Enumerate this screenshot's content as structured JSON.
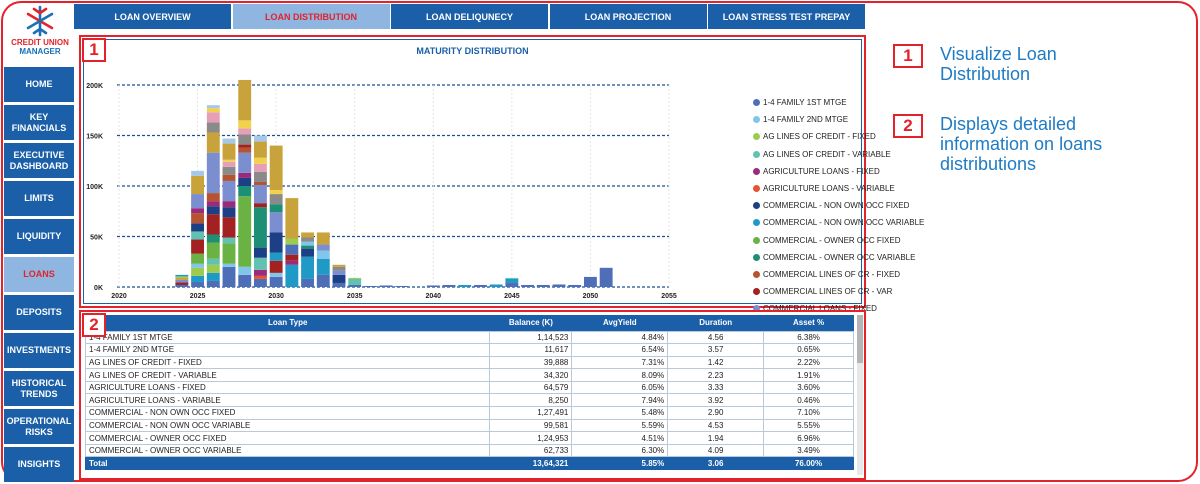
{
  "logo": {
    "line1": "CREDIT UNION",
    "line2": "MANAGER"
  },
  "nav": [
    {
      "label": "HOME",
      "active": false
    },
    {
      "label": "KEY FINANCIALS",
      "active": false
    },
    {
      "label": "EXECUTIVE DASHBOARD",
      "active": false
    },
    {
      "label": "LIMITS",
      "active": false
    },
    {
      "label": "LIQUIDITY",
      "active": false
    },
    {
      "label": "LOANS",
      "active": true
    },
    {
      "label": "DEPOSITS",
      "active": false
    },
    {
      "label": "INVESTMENTS",
      "active": false
    },
    {
      "label": "HISTORICAL TRENDS",
      "active": false
    },
    {
      "label": "OPERATIONAL RISKS",
      "active": false
    },
    {
      "label": "INSIGHTS",
      "active": false
    }
  ],
  "tabs": [
    {
      "label": "LOAN OVERVIEW",
      "active": false
    },
    {
      "label": "LOAN DISTRIBUTION",
      "active": true
    },
    {
      "label": "LOAN DELIQUNECY",
      "active": false
    },
    {
      "label": "LOAN PROJECTION",
      "active": false
    },
    {
      "label": "LOAN STRESS TEST PREPAY",
      "active": false
    }
  ],
  "colors": {
    "primary": "#1a5fa8",
    "active_tab": "#8fb6e0",
    "accent_red": "#e3222b",
    "note_text": "#1e7bc4"
  },
  "badges": {
    "chart": "1",
    "table": "2"
  },
  "notes": [
    {
      "num": "1",
      "text": "Visualize Loan Distribution"
    },
    {
      "num": "2",
      "text": "Displays detailed information on loans distributions"
    }
  ],
  "chart_data": {
    "type": "bar",
    "stacked": true,
    "title": "MATURITY DISTRIBUTION",
    "xlabel": "",
    "ylabel": "",
    "x_ticks": [
      "2020",
      "2025",
      "2030",
      "2035",
      "2040",
      "2045",
      "2050",
      "2055"
    ],
    "x_range": [
      2020,
      2055
    ],
    "y_ticks": [
      "0K",
      "50K",
      "100K",
      "150K",
      "200K"
    ],
    "ylim": [
      0,
      200000
    ],
    "grid": "dashed horizontal",
    "legend_position": "right",
    "legend": [
      {
        "name": "1-4 FAMILY 1ST MTGE",
        "color": "#4e6fb8"
      },
      {
        "name": "1-4 FAMILY 2ND MTGE",
        "color": "#7fc6ea"
      },
      {
        "name": "AG LINES OF CREDIT - FIXED",
        "color": "#9ccb4f"
      },
      {
        "name": "AG LINES OF CREDIT - VARIABLE",
        "color": "#62c1b0"
      },
      {
        "name": "AGRICULTURE LOANS - FIXED",
        "color": "#9c2a7a"
      },
      {
        "name": "AGRICULTURE LOANS - VARIABLE",
        "color": "#e8532f"
      },
      {
        "name": "COMMERCIAL - NON OWN OCC FIXED",
        "color": "#1c3f86"
      },
      {
        "name": "COMMERCIAL - NON OWN OCC VARIABLE",
        "color": "#1f9ac7"
      },
      {
        "name": "COMMERCIAL - OWNER OCC FIXED",
        "color": "#6ab244"
      },
      {
        "name": "COMMERCIAL - OWNER OCC VARIABLE",
        "color": "#1d8f74"
      },
      {
        "name": "COMMERCIAL LINES OF CR - FIXED",
        "color": "#b5542e"
      },
      {
        "name": "COMMERCIAL LINES OF CR - VAR",
        "color": "#a32121"
      },
      {
        "name": "COMMERCIAL LOANS - FIXED",
        "color": "#7a8ed0"
      }
    ],
    "extra_colors": [
      "#c8a23a",
      "#f2d24a",
      "#8a8a8a",
      "#e5a0b8",
      "#a5c8e8",
      "#222222"
    ],
    "bars": [
      {
        "x": 2024,
        "segments": [
          [
            0,
            2000
          ],
          [
            11,
            2500
          ],
          [
            12,
            2500
          ],
          [
            13,
            2000
          ],
          [
            2,
            1500
          ],
          [
            7,
            1500
          ]
        ]
      },
      {
        "x": 2025,
        "segments": [
          [
            0,
            5000
          ],
          [
            7,
            6000
          ],
          [
            2,
            8000
          ],
          [
            1,
            4000
          ],
          [
            8,
            10000
          ],
          [
            11,
            14000
          ],
          [
            3,
            8000
          ],
          [
            6,
            8000
          ],
          [
            10,
            10000
          ],
          [
            4,
            5000
          ],
          [
            12,
            14000
          ],
          [
            13,
            18000
          ],
          [
            17,
            5000
          ]
        ]
      },
      {
        "x": 2026,
        "segments": [
          [
            0,
            6000
          ],
          [
            7,
            8000
          ],
          [
            2,
            8000
          ],
          [
            3,
            6000
          ],
          [
            8,
            16000
          ],
          [
            9,
            8000
          ],
          [
            11,
            20000
          ],
          [
            6,
            8000
          ],
          [
            4,
            5000
          ],
          [
            10,
            8000
          ],
          [
            12,
            40000
          ],
          [
            13,
            20000
          ],
          [
            15,
            10000
          ],
          [
            16,
            10000
          ],
          [
            14,
            4000
          ],
          [
            17,
            3000
          ]
        ]
      },
      {
        "x": 2027,
        "segments": [
          [
            0,
            20000
          ],
          [
            1,
            3000
          ],
          [
            8,
            20000
          ],
          [
            3,
            6000
          ],
          [
            11,
            20000
          ],
          [
            6,
            10000
          ],
          [
            4,
            6000
          ],
          [
            12,
            20000
          ],
          [
            10,
            6000
          ],
          [
            15,
            8000
          ],
          [
            16,
            5000
          ],
          [
            14,
            2000
          ],
          [
            13,
            16000
          ],
          [
            17,
            5000
          ]
        ]
      },
      {
        "x": 2028,
        "segments": [
          [
            0,
            12000
          ],
          [
            1,
            8000
          ],
          [
            8,
            70000
          ],
          [
            9,
            10000
          ],
          [
            6,
            8000
          ],
          [
            4,
            5000
          ],
          [
            12,
            20000
          ],
          [
            10,
            5000
          ],
          [
            11,
            3000
          ],
          [
            15,
            10000
          ],
          [
            16,
            6000
          ],
          [
            14,
            8000
          ],
          [
            13,
            40000
          ]
        ]
      },
      {
        "x": 2029,
        "segments": [
          [
            0,
            8000
          ],
          [
            5,
            3000
          ],
          [
            4,
            6000
          ],
          [
            3,
            12000
          ],
          [
            6,
            10000
          ],
          [
            9,
            40000
          ],
          [
            11,
            4000
          ],
          [
            12,
            18000
          ],
          [
            10,
            3000
          ],
          [
            15,
            10000
          ],
          [
            16,
            8000
          ],
          [
            14,
            6000
          ],
          [
            13,
            16000
          ],
          [
            17,
            6000
          ]
        ]
      },
      {
        "x": 2030,
        "segments": [
          [
            0,
            10000
          ],
          [
            1,
            4000
          ],
          [
            11,
            12000
          ],
          [
            7,
            8000
          ],
          [
            6,
            20000
          ],
          [
            12,
            20000
          ],
          [
            9,
            8000
          ],
          [
            15,
            10000
          ],
          [
            14,
            4000
          ],
          [
            13,
            44000
          ]
        ]
      },
      {
        "x": 2031,
        "segments": [
          [
            7,
            22000
          ],
          [
            4,
            4000
          ],
          [
            11,
            6000
          ],
          [
            0,
            10000
          ],
          [
            2,
            6000
          ],
          [
            13,
            40000
          ]
        ]
      },
      {
        "x": 2032,
        "segments": [
          [
            0,
            8000
          ],
          [
            7,
            22000
          ],
          [
            6,
            8000
          ],
          [
            9,
            3000
          ],
          [
            1,
            4000
          ],
          [
            15,
            4000
          ],
          [
            13,
            5000
          ]
        ]
      },
      {
        "x": 2033,
        "segments": [
          [
            0,
            12000
          ],
          [
            7,
            16000
          ],
          [
            1,
            8000
          ],
          [
            12,
            6000
          ],
          [
            13,
            12000
          ]
        ]
      },
      {
        "x": 2034,
        "segments": [
          [
            0,
            4000
          ],
          [
            6,
            8000
          ],
          [
            12,
            4000
          ],
          [
            15,
            4000
          ],
          [
            13,
            2000
          ]
        ]
      },
      {
        "x": 2035,
        "segments": [
          [
            0,
            2000
          ],
          [
            3,
            6000
          ],
          [
            2,
            1000
          ]
        ]
      },
      {
        "x": 2036,
        "segments": [
          [
            0,
            1000
          ]
        ]
      },
      {
        "x": 2037,
        "segments": [
          [
            0,
            1500
          ]
        ]
      },
      {
        "x": 2038,
        "segments": [
          [
            0,
            1000
          ]
        ]
      },
      {
        "x": 2040,
        "segments": [
          [
            0,
            1500
          ]
        ]
      },
      {
        "x": 2041,
        "segments": [
          [
            0,
            2000
          ]
        ]
      },
      {
        "x": 2042,
        "segments": [
          [
            7,
            2000
          ]
        ]
      },
      {
        "x": 2043,
        "segments": [
          [
            0,
            2000
          ]
        ]
      },
      {
        "x": 2044,
        "segments": [
          [
            7,
            2500
          ]
        ]
      },
      {
        "x": 2045,
        "segments": [
          [
            0,
            4000
          ],
          [
            7,
            4000
          ],
          [
            3,
            1000
          ]
        ]
      },
      {
        "x": 2046,
        "segments": [
          [
            0,
            2000
          ]
        ]
      },
      {
        "x": 2047,
        "segments": [
          [
            0,
            2000
          ]
        ]
      },
      {
        "x": 2048,
        "segments": [
          [
            0,
            2500
          ]
        ]
      },
      {
        "x": 2049,
        "segments": [
          [
            0,
            2000
          ]
        ]
      },
      {
        "x": 2050,
        "segments": [
          [
            0,
            10000
          ]
        ]
      },
      {
        "x": 2051,
        "segments": [
          [
            0,
            19000
          ]
        ]
      }
    ]
  },
  "table": {
    "columns": [
      "Loan Type",
      "Balance (K)",
      "AvgYield",
      "Duration",
      "Asset %"
    ],
    "rows": [
      [
        "1-4 FAMILY 1ST MTGE",
        "1,14,523",
        "4.84%",
        "4.56",
        "6.38%"
      ],
      [
        "1-4 FAMILY 2ND MTGE",
        "11,617",
        "6.54%",
        "3.57",
        "0.65%"
      ],
      [
        "AG LINES OF CREDIT - FIXED",
        "39,888",
        "7.31%",
        "1.42",
        "2.22%"
      ],
      [
        "AG LINES OF CREDIT - VARIABLE",
        "34,320",
        "8.09%",
        "2.23",
        "1.91%"
      ],
      [
        "AGRICULTURE LOANS - FIXED",
        "64,579",
        "6.05%",
        "3.33",
        "3.60%"
      ],
      [
        "AGRICULTURE LOANS - VARIABLE",
        "8,250",
        "7.94%",
        "3.92",
        "0.46%"
      ],
      [
        "COMMERCIAL - NON OWN OCC FIXED",
        "1,27,491",
        "5.48%",
        "2.90",
        "7.10%"
      ],
      [
        "COMMERCIAL - NON OWN OCC VARIABLE",
        "99,581",
        "5.59%",
        "4.53",
        "5.55%"
      ],
      [
        "COMMERCIAL - OWNER OCC FIXED",
        "1,24,953",
        "4.51%",
        "1.94",
        "6.96%"
      ],
      [
        "COMMERCIAL - OWNER OCC VARIABLE",
        "62,733",
        "6.30%",
        "4.09",
        "3.49%"
      ]
    ],
    "total": [
      "Total",
      "13,64,321",
      "5.85%",
      "3.06",
      "76.00%"
    ]
  }
}
